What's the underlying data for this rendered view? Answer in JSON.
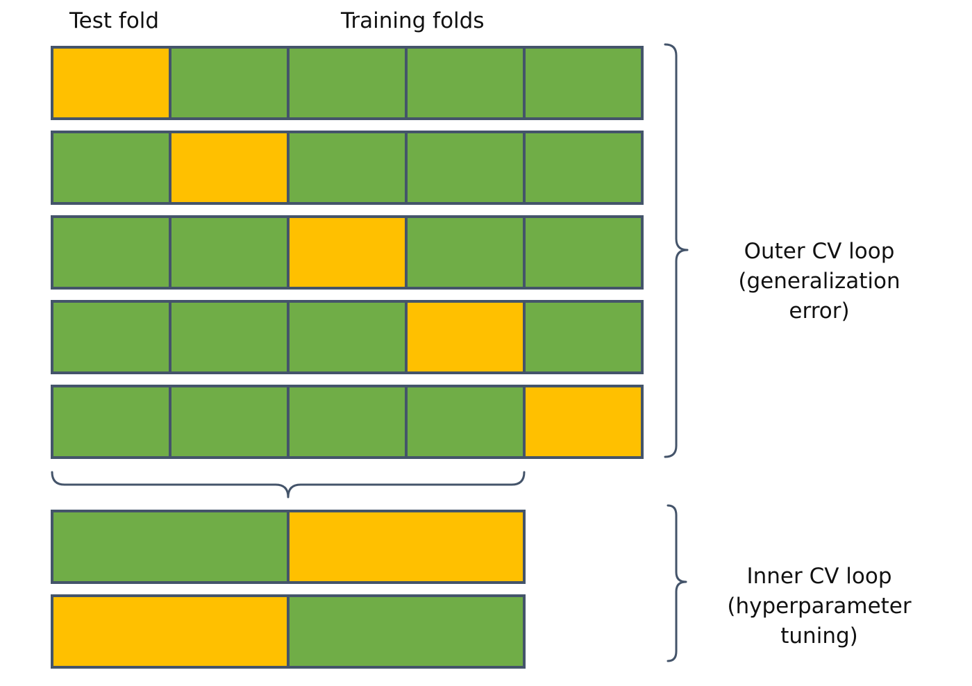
{
  "labels": {
    "test_fold": "Test fold",
    "training_folds": "Training folds"
  },
  "outer_loop": {
    "line1": "Outer CV loop",
    "line2": "(generalization error)",
    "rows": [
      [
        "test",
        "train",
        "train",
        "train",
        "train"
      ],
      [
        "train",
        "test",
        "train",
        "train",
        "train"
      ],
      [
        "train",
        "train",
        "test",
        "train",
        "train"
      ],
      [
        "train",
        "train",
        "train",
        "test",
        "train"
      ],
      [
        "train",
        "train",
        "train",
        "train",
        "test"
      ]
    ]
  },
  "inner_loop": {
    "line1": "Inner CV loop",
    "line2": "(hyperparameter",
    "line3": "tuning)",
    "rows": [
      [
        "train",
        "test"
      ],
      [
        "test",
        "train"
      ]
    ]
  },
  "colors": {
    "test": "#FFC000",
    "train": "#70AD47",
    "border": "#44546A",
    "brace": "#44546A"
  }
}
